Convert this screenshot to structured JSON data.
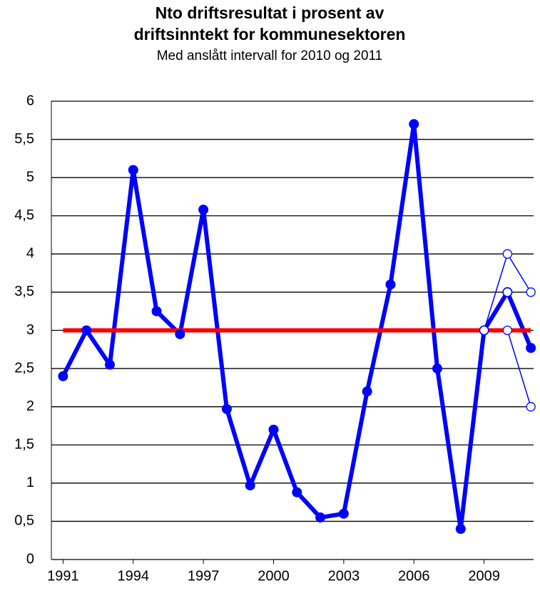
{
  "chart_data": {
    "type": "line",
    "title": [
      "Nto driftsresultat i prosent av",
      "driftsinntekt for kommunesektoren"
    ],
    "subtitle": "Med anslått intervall for 2010 og 2011",
    "x": [
      1991,
      1992,
      1993,
      1994,
      1995,
      1996,
      1997,
      1998,
      1999,
      2000,
      2001,
      2002,
      2003,
      2004,
      2005,
      2006,
      2007,
      2008,
      2009,
      2010,
      2011
    ],
    "xlim": [
      1990.5,
      2011.3
    ],
    "xticks": [
      1991,
      1994,
      1997,
      2000,
      2003,
      2006,
      2009
    ],
    "ylim": [
      0,
      6
    ],
    "yticks": [
      0,
      {
        "value": 0.5,
        "label": "0,5"
      },
      1,
      {
        "value": 1.5,
        "label": "1,5"
      },
      2,
      {
        "value": 2.5,
        "label": "2,5"
      },
      3,
      {
        "value": 3.5,
        "label": "3,5"
      },
      4,
      {
        "value": 4.5,
        "label": "4,5"
      },
      5,
      {
        "value": 5.5,
        "label": "5,5"
      },
      6
    ],
    "grid": true,
    "hline": {
      "value": 3,
      "color": "#ff0000"
    },
    "series": [
      {
        "color": "#0000ff",
        "style": "main",
        "values": [
          2.4,
          3.0,
          2.55,
          5.1,
          3.25,
          2.95,
          4.58,
          1.97,
          0.97,
          1.7,
          0.88,
          0.55,
          0.6,
          2.2,
          3.6,
          5.7,
          2.5,
          0.4,
          3.0,
          3.5,
          2.77
        ]
      },
      {
        "color": "#0000ff",
        "style": "interval",
        "values": [
          null,
          null,
          null,
          null,
          null,
          null,
          null,
          null,
          null,
          null,
          null,
          null,
          null,
          null,
          null,
          null,
          null,
          null,
          3,
          4,
          3.5
        ]
      },
      {
        "color": "#0000ff",
        "style": "interval",
        "values": [
          null,
          null,
          null,
          null,
          null,
          null,
          null,
          null,
          null,
          null,
          null,
          null,
          null,
          null,
          null,
          null,
          null,
          null,
          3,
          3,
          2
        ]
      },
      {
        "color": "#0000ff",
        "style": "interval",
        "values": [
          null,
          null,
          null,
          null,
          null,
          null,
          null,
          null,
          null,
          null,
          null,
          null,
          null,
          null,
          null,
          null,
          null,
          null,
          null,
          3.5,
          null
        ]
      }
    ]
  }
}
